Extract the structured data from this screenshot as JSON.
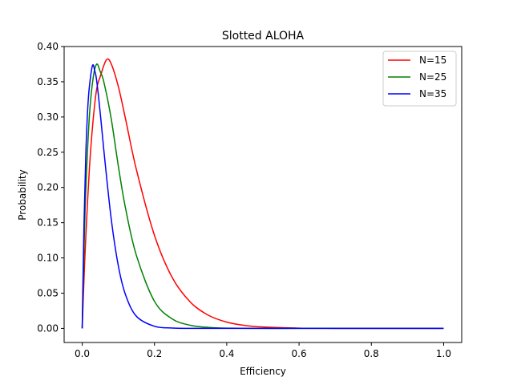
{
  "chart_data": {
    "type": "line",
    "title": "Slotted ALOHA",
    "xlabel": "Efficiency",
    "ylabel": "Probability",
    "xlim": [
      -0.05,
      1.05
    ],
    "ylim": [
      -0.02,
      0.4
    ],
    "xticks": [
      {
        "value": 0.0,
        "label": "0.0"
      },
      {
        "value": 0.2,
        "label": "0.2"
      },
      {
        "value": 0.4,
        "label": "0.4"
      },
      {
        "value": 0.6,
        "label": "0.6"
      },
      {
        "value": 0.8,
        "label": "0.8"
      },
      {
        "value": 1.0,
        "label": "1.0"
      }
    ],
    "yticks": [
      {
        "value": 0.0,
        "label": "0.00"
      },
      {
        "value": 0.05,
        "label": "0.05"
      },
      {
        "value": 0.1,
        "label": "0.10"
      },
      {
        "value": 0.15,
        "label": "0.15"
      },
      {
        "value": 0.2,
        "label": "0.20"
      },
      {
        "value": 0.25,
        "label": "0.25"
      },
      {
        "value": 0.3,
        "label": "0.30"
      },
      {
        "value": 0.35,
        "label": "0.35"
      },
      {
        "value": 0.4,
        "label": "0.40"
      }
    ],
    "grid": false,
    "legend_position": "top-right",
    "series": [
      {
        "name": "N=15",
        "color": "#ff0000",
        "x": [
          0,
          0.005,
          0.01,
          0.02,
          0.03,
          0.04,
          0.05,
          0.0667,
          0.08,
          0.1,
          0.12,
          0.15,
          0.2,
          0.25,
          0.3,
          0.35,
          0.4,
          0.45,
          0.5,
          0.6,
          0.7,
          0.8,
          0.9,
          1.0
        ],
        "y": [
          0,
          0.0698,
          0.1303,
          0.2273,
          0.2944,
          0.3396,
          0.3575,
          0.3809,
          0.3758,
          0.3432,
          0.2971,
          0.2252,
          0.132,
          0.0713,
          0.0369,
          0.0184,
          0.0089,
          0.0042,
          0.002,
          0.0004,
          0.0001,
          0.0,
          0.0,
          0.0
        ]
      },
      {
        "name": "N=25",
        "color": "#008000",
        "x": [
          0,
          0.005,
          0.01,
          0.02,
          0.03,
          0.04,
          0.05,
          0.06,
          0.08,
          0.1,
          0.12,
          0.15,
          0.2,
          0.25,
          0.3,
          0.35,
          0.4,
          0.5,
          0.6,
          0.8,
          1.0
        ],
        "y": [
          0,
          0.1107,
          0.1968,
          0.3019,
          0.3542,
          0.375,
          0.3643,
          0.3495,
          0.2984,
          0.2303,
          0.1702,
          0.1034,
          0.0384,
          0.0132,
          0.0043,
          0.0014,
          0.0004,
          0.0,
          0.0,
          0.0,
          0.0
        ]
      },
      {
        "name": "N=35",
        "color": "#0000ff",
        "x": [
          0,
          0.005,
          0.01,
          0.015,
          0.02,
          0.0286,
          0.035,
          0.04,
          0.05,
          0.06,
          0.08,
          0.1,
          0.12,
          0.15,
          0.2,
          0.25,
          0.3,
          0.4,
          0.5,
          0.6,
          0.8,
          1.0
        ],
        "y": [
          0,
          0.1477,
          0.2468,
          0.3092,
          0.3435,
          0.3732,
          0.365,
          0.3517,
          0.3052,
          0.2522,
          0.1566,
          0.0887,
          0.0476,
          0.0172,
          0.003,
          0.0005,
          0.0001,
          0.0,
          0.0,
          0.0,
          0.0,
          0.0
        ]
      }
    ]
  }
}
